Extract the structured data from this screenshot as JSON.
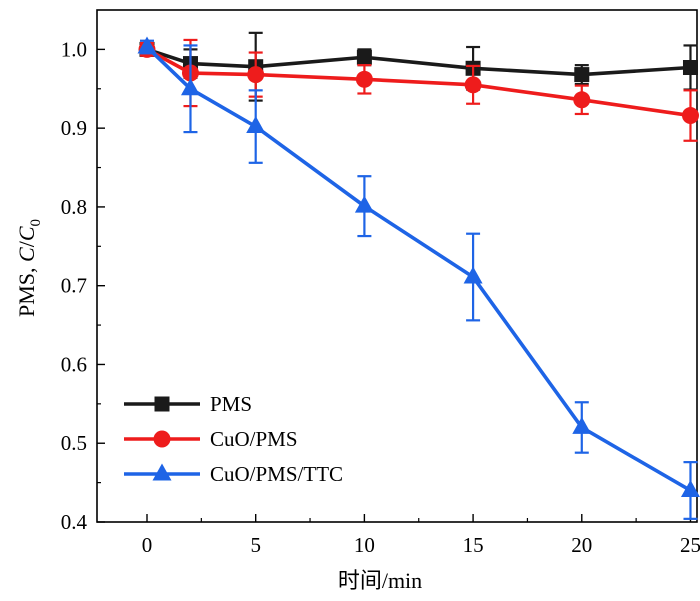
{
  "chart_data": {
    "type": "line",
    "title": "",
    "xlabel": "时间/min",
    "ylabel": {
      "prefix": "PMS, ",
      "var": "C",
      "slash": "/",
      "var0": "C",
      "sub": "0"
    },
    "xlim": [
      -2.3,
      25.3
    ],
    "ylim": [
      0.4,
      1.05
    ],
    "xticks": [
      0,
      5,
      10,
      15,
      20,
      25
    ],
    "yticks": [
      0.4,
      0.5,
      0.6,
      0.7,
      0.8,
      0.9,
      1.0
    ],
    "ytick_labels": [
      "0.4",
      "0.5",
      "0.6",
      "0.7",
      "0.8",
      "0.9",
      "1.0"
    ],
    "grid": false,
    "legend_position": "bottom-left",
    "series": [
      {
        "name": "PMS",
        "color": "#1a1a1a",
        "marker": "square",
        "x": [
          0,
          2,
          5,
          10,
          15,
          20,
          25
        ],
        "y": [
          1.0,
          0.982,
          0.978,
          0.99,
          0.976,
          0.968,
          0.977
        ],
        "err": [
          0.008,
          0.018,
          0.043,
          0.01,
          0.027,
          0.012,
          0.028
        ]
      },
      {
        "name": "CuO/PMS",
        "color": "#ee1c1c",
        "marker": "circle",
        "x": [
          0,
          2,
          5,
          10,
          15,
          20,
          25
        ],
        "y": [
          1.0,
          0.97,
          0.968,
          0.962,
          0.955,
          0.936,
          0.916
        ],
        "err": [
          0.008,
          0.042,
          0.028,
          0.018,
          0.024,
          0.018,
          0.032
        ]
      },
      {
        "name": "CuO/PMS/TTC",
        "color": "#1e64e6",
        "marker": "triangle",
        "x": [
          0,
          2,
          5,
          10,
          15,
          20,
          25
        ],
        "y": [
          1.003,
          0.95,
          0.902,
          0.801,
          0.711,
          0.52,
          0.44
        ],
        "err": [
          0.008,
          0.055,
          0.046,
          0.038,
          0.055,
          0.032,
          0.036
        ]
      }
    ]
  }
}
